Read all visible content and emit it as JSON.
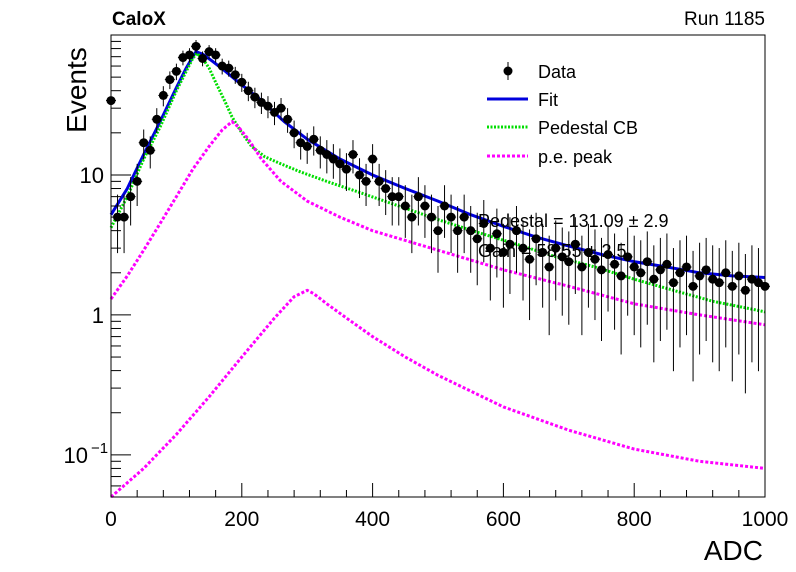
{
  "chart_data": {
    "type": "scatter",
    "title_left": "CaloX",
    "title_right": "Run 1185",
    "xlabel": "ADC",
    "ylabel": "Events",
    "xlim": [
      0,
      1000
    ],
    "ylim": [
      0.05,
      100
    ],
    "yscale": "log",
    "x_ticks": [
      0,
      200,
      400,
      600,
      800,
      1000
    ],
    "y_ticks": [
      {
        "value": 0.1,
        "label": "10",
        "exp": "−1"
      },
      {
        "value": 1,
        "label": "1",
        "exp": ""
      },
      {
        "value": 10,
        "label": "10",
        "exp": ""
      }
    ],
    "legend": {
      "position": "top-right",
      "entries": [
        "Data",
        "Fit",
        "Pedestal CB",
        "p.e. peak"
      ]
    },
    "annotations": [
      "Pedestal = 131.09 ± 2.9",
      "Gain = 58.55 ± 2.5"
    ],
    "colors": {
      "data": "#000000",
      "fit": "#0000dd",
      "pedestal": "#00dd00",
      "pe": "#ff00ff"
    },
    "series": [
      {
        "name": "Data",
        "style": "points",
        "x": [
          0,
          10,
          20,
          30,
          40,
          50,
          60,
          70,
          80,
          90,
          100,
          110,
          120,
          130,
          140,
          150,
          160,
          170,
          180,
          190,
          200,
          210,
          220,
          230,
          240,
          250,
          260,
          270,
          280,
          290,
          300,
          310,
          320,
          330,
          340,
          350,
          360,
          370,
          380,
          390,
          400,
          410,
          420,
          430,
          440,
          450,
          460,
          470,
          480,
          490,
          500,
          510,
          520,
          530,
          540,
          550,
          560,
          570,
          580,
          590,
          600,
          610,
          620,
          630,
          640,
          650,
          660,
          670,
          680,
          690,
          700,
          710,
          720,
          730,
          740,
          750,
          760,
          770,
          780,
          790,
          800,
          810,
          820,
          830,
          840,
          850,
          860,
          870,
          880,
          890,
          900,
          910,
          920,
          930,
          940,
          950,
          960,
          970,
          980,
          990,
          1000
        ],
        "y": [
          34,
          5,
          5,
          7,
          9,
          17,
          15,
          25,
          37,
          48,
          55,
          69,
          72,
          83,
          68,
          76,
          72,
          60,
          58,
          52,
          46,
          40,
          36,
          33,
          31,
          28,
          30,
          25,
          20,
          17,
          16,
          18,
          15,
          14,
          13,
          12,
          11,
          14,
          10,
          9,
          13,
          9,
          8,
          7,
          7,
          6,
          5,
          7,
          6,
          5,
          4,
          6,
          5,
          4,
          5,
          4,
          3.5,
          4.5,
          3,
          3.8,
          2.8,
          3.2,
          4,
          3,
          2.5,
          3.5,
          2.8,
          2.2,
          3,
          2.6,
          2.4,
          3.2,
          2.2,
          2.8,
          2.5,
          2.1,
          2.7,
          2.3,
          1.9,
          2.6,
          2.2,
          2,
          2.4,
          1.8,
          2.1,
          2.3,
          1.7,
          2,
          2.2,
          1.6,
          1.9,
          2.1,
          1.8,
          1.7,
          2,
          1.6,
          1.9,
          1.5,
          1.8,
          1.7,
          1.6
        ]
      },
      {
        "name": "Fit",
        "style": "line",
        "x": [
          0,
          25,
          50,
          75,
          100,
          115,
          125,
          130,
          140,
          155,
          175,
          200,
          230,
          265,
          300,
          350,
          400,
          450,
          500,
          550,
          600,
          650,
          700,
          750,
          800,
          850,
          900,
          950,
          1000
        ],
        "y": [
          5.2,
          8,
          14,
          24,
          42,
          58,
          70,
          76,
          73,
          65,
          55,
          44,
          34,
          24,
          18,
          13,
          10,
          8,
          6.5,
          5.2,
          4.3,
          3.6,
          3.1,
          2.7,
          2.4,
          2.2,
          2.0,
          1.9,
          1.85
        ]
      },
      {
        "name": "Pedestal CB",
        "style": "dotted",
        "x": [
          0,
          25,
          50,
          75,
          100,
          115,
          125,
          131,
          140,
          150,
          160,
          175,
          185,
          200,
          215,
          235,
          260,
          290,
          330,
          380,
          440,
          500,
          560,
          620,
          680,
          740,
          800,
          860,
          920,
          980,
          1000
        ],
        "y": [
          4.2,
          7,
          13,
          22,
          40,
          55,
          68,
          74,
          68,
          58,
          46,
          33,
          26,
          20,
          16,
          13.5,
          12,
          10.5,
          9,
          7.5,
          6,
          4.8,
          3.9,
          3.2,
          2.6,
          2.2,
          1.8,
          1.5,
          1.25,
          1.1,
          1.05
        ]
      },
      {
        "name": "p.e. peak",
        "style": "dotted",
        "x": [
          0,
          25,
          50,
          75,
          100,
          125,
          150,
          170,
          185,
          195,
          210,
          230,
          260,
          300,
          350,
          400,
          500,
          600,
          700,
          800,
          900,
          1000
        ],
        "y": [
          1.3,
          1.9,
          2.9,
          4.5,
          7,
          11,
          16,
          21,
          24,
          22,
          18,
          13,
          9,
          6.5,
          5,
          4,
          2.9,
          2.1,
          1.6,
          1.2,
          1.0,
          0.85
        ]
      },
      {
        "name": "p.e. peak 2",
        "style": "dotted",
        "x": [
          0,
          50,
          100,
          150,
          200,
          250,
          280,
          300,
          310,
          330,
          360,
          400,
          450,
          500,
          600,
          700,
          800,
          900,
          1000
        ],
        "y": [
          0.05,
          0.08,
          0.14,
          0.26,
          0.5,
          0.95,
          1.35,
          1.5,
          1.42,
          1.2,
          0.95,
          0.7,
          0.5,
          0.37,
          0.22,
          0.15,
          0.11,
          0.09,
          0.08
        ]
      }
    ]
  }
}
